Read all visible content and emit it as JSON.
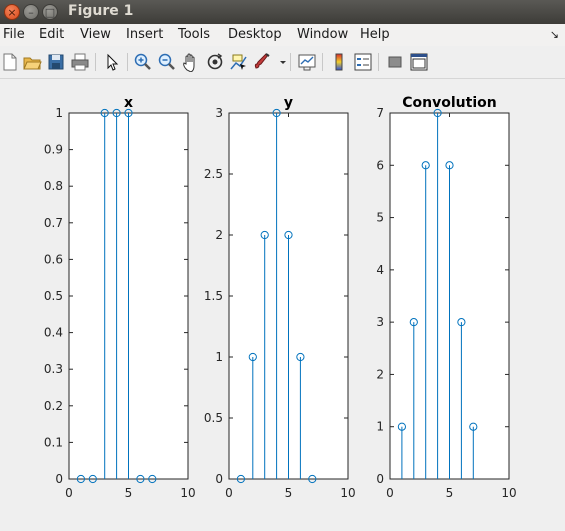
{
  "window": {
    "title": "Figure 1",
    "close_glyph": "×",
    "min_glyph": "–",
    "max_glyph": "□"
  },
  "menu": {
    "items": [
      {
        "label": "File"
      },
      {
        "label": "Edit"
      },
      {
        "label": "View"
      },
      {
        "label": "Insert"
      },
      {
        "label": "Tools"
      },
      {
        "label": "Desktop"
      },
      {
        "label": "Window"
      },
      {
        "label": "Help"
      }
    ],
    "overflow_glyph": "↘"
  },
  "toolbar": {
    "icons": [
      "new-figure-icon",
      "open-file-icon",
      "save-icon",
      "print-icon",
      "select-arrow-icon",
      "zoom-in-icon",
      "zoom-out-icon",
      "pan-hand-icon",
      "rotate-3d-icon",
      "data-cursor-icon",
      "brush-icon",
      "brush-dropdown-icon",
      "link-plot-icon",
      "colorbar-icon",
      "legend-icon",
      "hide-plot-tools-icon",
      "show-plot-tools-icon"
    ]
  },
  "colors": {
    "stem": "#0072bd",
    "axes_bg": "#ffffff",
    "figure_bg": "#f0f0f0"
  },
  "chart_data": [
    {
      "type": "stem",
      "title": "x",
      "x": [
        1,
        2,
        3,
        4,
        5,
        6,
        7
      ],
      "y": [
        0,
        0,
        1,
        1,
        1,
        0,
        0
      ],
      "xlim": [
        0,
        10
      ],
      "ylim": [
        0,
        1
      ],
      "xticks": [
        0,
        5,
        10
      ],
      "yticks": [
        0,
        0.1,
        0.2,
        0.3,
        0.4,
        0.5,
        0.6,
        0.7,
        0.8,
        0.9,
        1
      ],
      "grid": false
    },
    {
      "type": "stem",
      "title": "y",
      "x": [
        1,
        2,
        3,
        4,
        5,
        6,
        7
      ],
      "y": [
        0,
        1,
        2,
        3,
        2,
        1,
        0
      ],
      "xlim": [
        0,
        10
      ],
      "ylim": [
        0,
        3
      ],
      "xticks": [
        0,
        5,
        10
      ],
      "yticks": [
        0,
        0.5,
        1,
        1.5,
        2,
        2.5,
        3
      ],
      "grid": false
    },
    {
      "type": "stem",
      "title": "Convolution",
      "x": [
        1,
        2,
        3,
        4,
        5,
        6,
        7
      ],
      "y": [
        1,
        3,
        6,
        7,
        6,
        3,
        1
      ],
      "xlim": [
        0,
        10
      ],
      "ylim": [
        0,
        7
      ],
      "xticks": [
        0,
        5,
        10
      ],
      "yticks": [
        0,
        1,
        2,
        3,
        4,
        5,
        6,
        7
      ],
      "grid": false
    }
  ]
}
